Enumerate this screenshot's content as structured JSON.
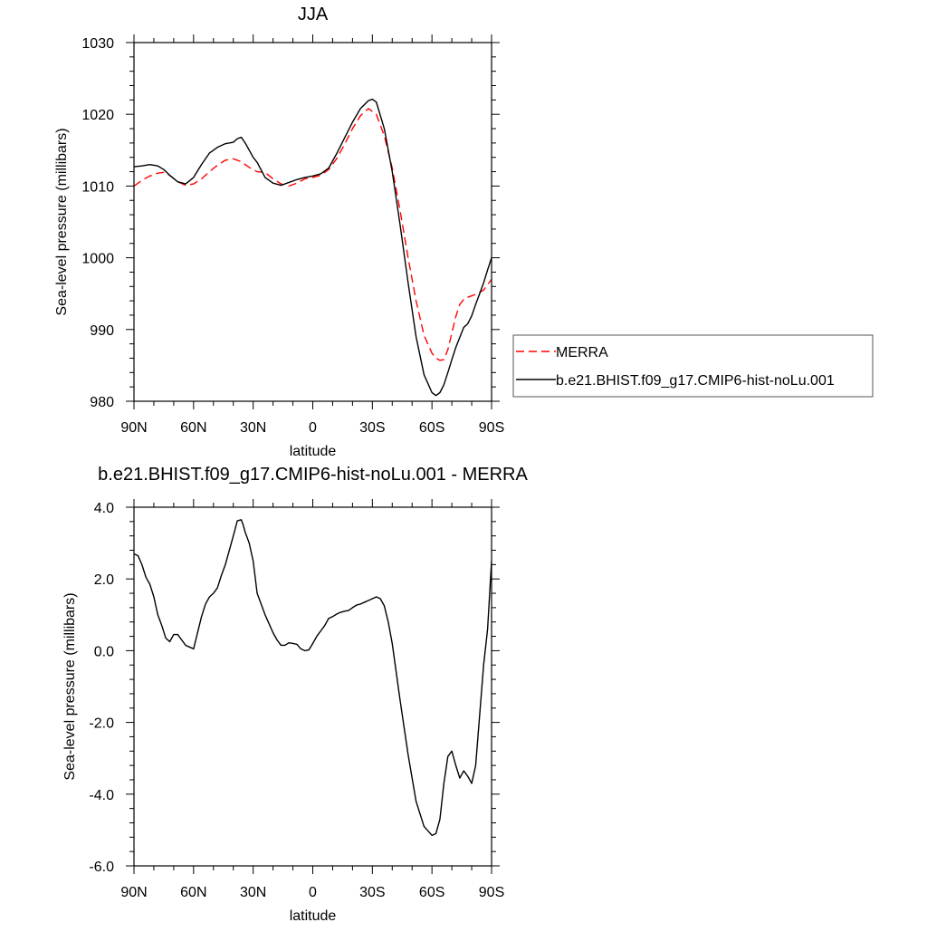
{
  "chart_data": [
    {
      "type": "line",
      "title": "JJA",
      "xlabel": "latitude",
      "ylabel": "Sea-level pressure (millibars)",
      "xlim": [
        90,
        -90
      ],
      "ylim": [
        980,
        1030
      ],
      "xticks": [
        90,
        60,
        30,
        0,
        -30,
        -60,
        -90
      ],
      "xtick_labels": [
        "90N",
        "60N",
        "30N",
        "0",
        "30S",
        "60S",
        "90S"
      ],
      "yticks": [
        980,
        990,
        1000,
        1010,
        1020,
        1030
      ],
      "ytick_labels": [
        "980",
        "990",
        "1000",
        "1010",
        "1020",
        "1030"
      ],
      "legend_position": "right",
      "series": [
        {
          "name": "MERRA",
          "color": "#ff0000",
          "dash": "dashed",
          "x": [
            90,
            86,
            82,
            78,
            75,
            72,
            68,
            64,
            60,
            56,
            52,
            48,
            44,
            40,
            36,
            32,
            28,
            24,
            20,
            16,
            12,
            8,
            4,
            0,
            -4,
            -8,
            -12,
            -16,
            -20,
            -24,
            -28,
            -32,
            -36,
            -40,
            -44,
            -48,
            -52,
            -56,
            -60,
            -62,
            -64,
            -66,
            -68,
            -70,
            -72,
            -74,
            -76,
            -78,
            -80,
            -82,
            -86,
            -90
          ],
          "y": [
            1010.0,
            1010.8,
            1011.4,
            1011.8,
            1011.9,
            1011.5,
            1010.6,
            1010.1,
            1010.3,
            1011.0,
            1012.0,
            1012.9,
            1013.6,
            1013.8,
            1013.4,
            1012.6,
            1012.0,
            1011.9,
            1011.0,
            1010.3,
            1010.0,
            1010.4,
            1011.0,
            1011.2,
            1011.5,
            1012.3,
            1013.8,
            1015.8,
            1018.0,
            1019.8,
            1020.8,
            1020.0,
            1017.0,
            1012.5,
            1006.5,
            1000.0,
            994.0,
            989.2,
            986.7,
            986.0,
            985.7,
            985.8,
            987.2,
            989.5,
            991.8,
            993.5,
            994.2,
            994.5,
            994.7,
            994.9,
            995.5,
            997.0
          ]
        },
        {
          "name": "b.e21.BHIST.f09_g17.CMIP6-hist-noLu.001",
          "color": "#000000",
          "dash": "solid",
          "x": [
            90,
            86,
            82,
            78,
            75,
            72,
            68,
            64,
            60,
            56,
            52,
            48,
            44,
            40,
            38,
            36,
            34,
            32,
            30,
            28,
            24,
            20,
            16,
            12,
            8,
            4,
            0,
            -4,
            -8,
            -12,
            -16,
            -20,
            -24,
            -28,
            -30,
            -32,
            -36,
            -40,
            -44,
            -48,
            -52,
            -56,
            -60,
            -62,
            -64,
            -66,
            -68,
            -70,
            -72,
            -74,
            -76,
            -78,
            -80,
            -82,
            -84,
            -86,
            -88,
            -90
          ],
          "y": [
            1012.7,
            1012.8,
            1013.0,
            1012.8,
            1012.3,
            1011.5,
            1010.6,
            1010.3,
            1011.2,
            1013.0,
            1014.6,
            1015.4,
            1015.9,
            1016.1,
            1016.6,
            1016.8,
            1016.0,
            1015.0,
            1014.0,
            1013.3,
            1011.2,
            1010.4,
            1010.1,
            1010.5,
            1010.9,
            1011.2,
            1011.4,
            1011.7,
            1012.5,
            1014.5,
            1016.7,
            1018.9,
            1020.8,
            1021.9,
            1022.1,
            1021.7,
            1018.0,
            1012.0,
            1004.5,
            996.5,
            989.0,
            983.7,
            981.2,
            980.8,
            981.2,
            982.3,
            984.0,
            985.8,
            987.5,
            988.9,
            990.3,
            990.8,
            991.9,
            993.5,
            995.0,
            996.5,
            998.3,
            1000.0
          ]
        }
      ]
    },
    {
      "type": "line",
      "title": "b.e21.BHIST.f09_g17.CMIP6-hist-noLu.001 - MERRA",
      "xlabel": "latitude",
      "ylabel": "Sea-level pressure (millibars)",
      "xlim": [
        90,
        -90
      ],
      "ylim": [
        -6,
        4
      ],
      "xticks": [
        90,
        60,
        30,
        0,
        -30,
        -60,
        -90
      ],
      "xtick_labels": [
        "90N",
        "60N",
        "30N",
        "0",
        "30S",
        "60S",
        "90S"
      ],
      "yticks": [
        -6,
        -4,
        -2,
        0,
        2,
        4
      ],
      "ytick_labels": [
        "-6.0",
        "-4.0",
        "-2.0",
        "0.0",
        "2.0",
        "4.0"
      ],
      "series": [
        {
          "color": "#000000",
          "dash": "solid",
          "x": [
            90,
            88,
            86,
            84,
            82,
            80,
            78,
            76,
            74,
            72,
            70,
            68,
            66,
            64,
            62,
            60,
            58,
            56,
            54,
            52,
            50,
            48,
            46,
            44,
            42,
            40,
            38,
            36,
            35,
            34,
            32,
            30,
            28,
            26,
            24,
            22,
            20,
            18,
            16,
            14,
            12,
            10,
            8,
            6,
            4,
            2,
            0,
            -2,
            -4,
            -6,
            -8,
            -10,
            -12,
            -14,
            -16,
            -18,
            -20,
            -22,
            -24,
            -26,
            -28,
            -30,
            -32,
            -34,
            -36,
            -38,
            -40,
            -44,
            -48,
            -52,
            -56,
            -60,
            -62,
            -64,
            -66,
            -68,
            -70,
            -72,
            -74,
            -76,
            -78,
            -80,
            -82,
            -84,
            -86,
            -88,
            -90
          ],
          "y": [
            2.7,
            2.65,
            2.4,
            2.05,
            1.85,
            1.5,
            1.0,
            0.7,
            0.35,
            0.25,
            0.45,
            0.45,
            0.3,
            0.15,
            0.1,
            0.05,
            0.5,
            0.95,
            1.3,
            1.5,
            1.6,
            1.75,
            2.1,
            2.4,
            2.8,
            3.2,
            3.62,
            3.65,
            3.5,
            3.3,
            3.0,
            2.5,
            1.6,
            1.3,
            1.0,
            0.75,
            0.5,
            0.3,
            0.15,
            0.15,
            0.22,
            0.2,
            0.18,
            0.05,
            0.0,
            0.02,
            0.2,
            0.4,
            0.55,
            0.7,
            0.9,
            0.95,
            1.02,
            1.07,
            1.1,
            1.12,
            1.2,
            1.27,
            1.3,
            1.35,
            1.4,
            1.45,
            1.5,
            1.45,
            1.25,
            0.8,
            0.2,
            -1.4,
            -2.9,
            -4.2,
            -4.9,
            -5.15,
            -5.1,
            -4.7,
            -3.7,
            -2.95,
            -2.8,
            -3.2,
            -3.55,
            -3.35,
            -3.5,
            -3.7,
            -3.2,
            -1.8,
            -0.4,
            0.6,
            2.5
          ]
        }
      ]
    }
  ]
}
